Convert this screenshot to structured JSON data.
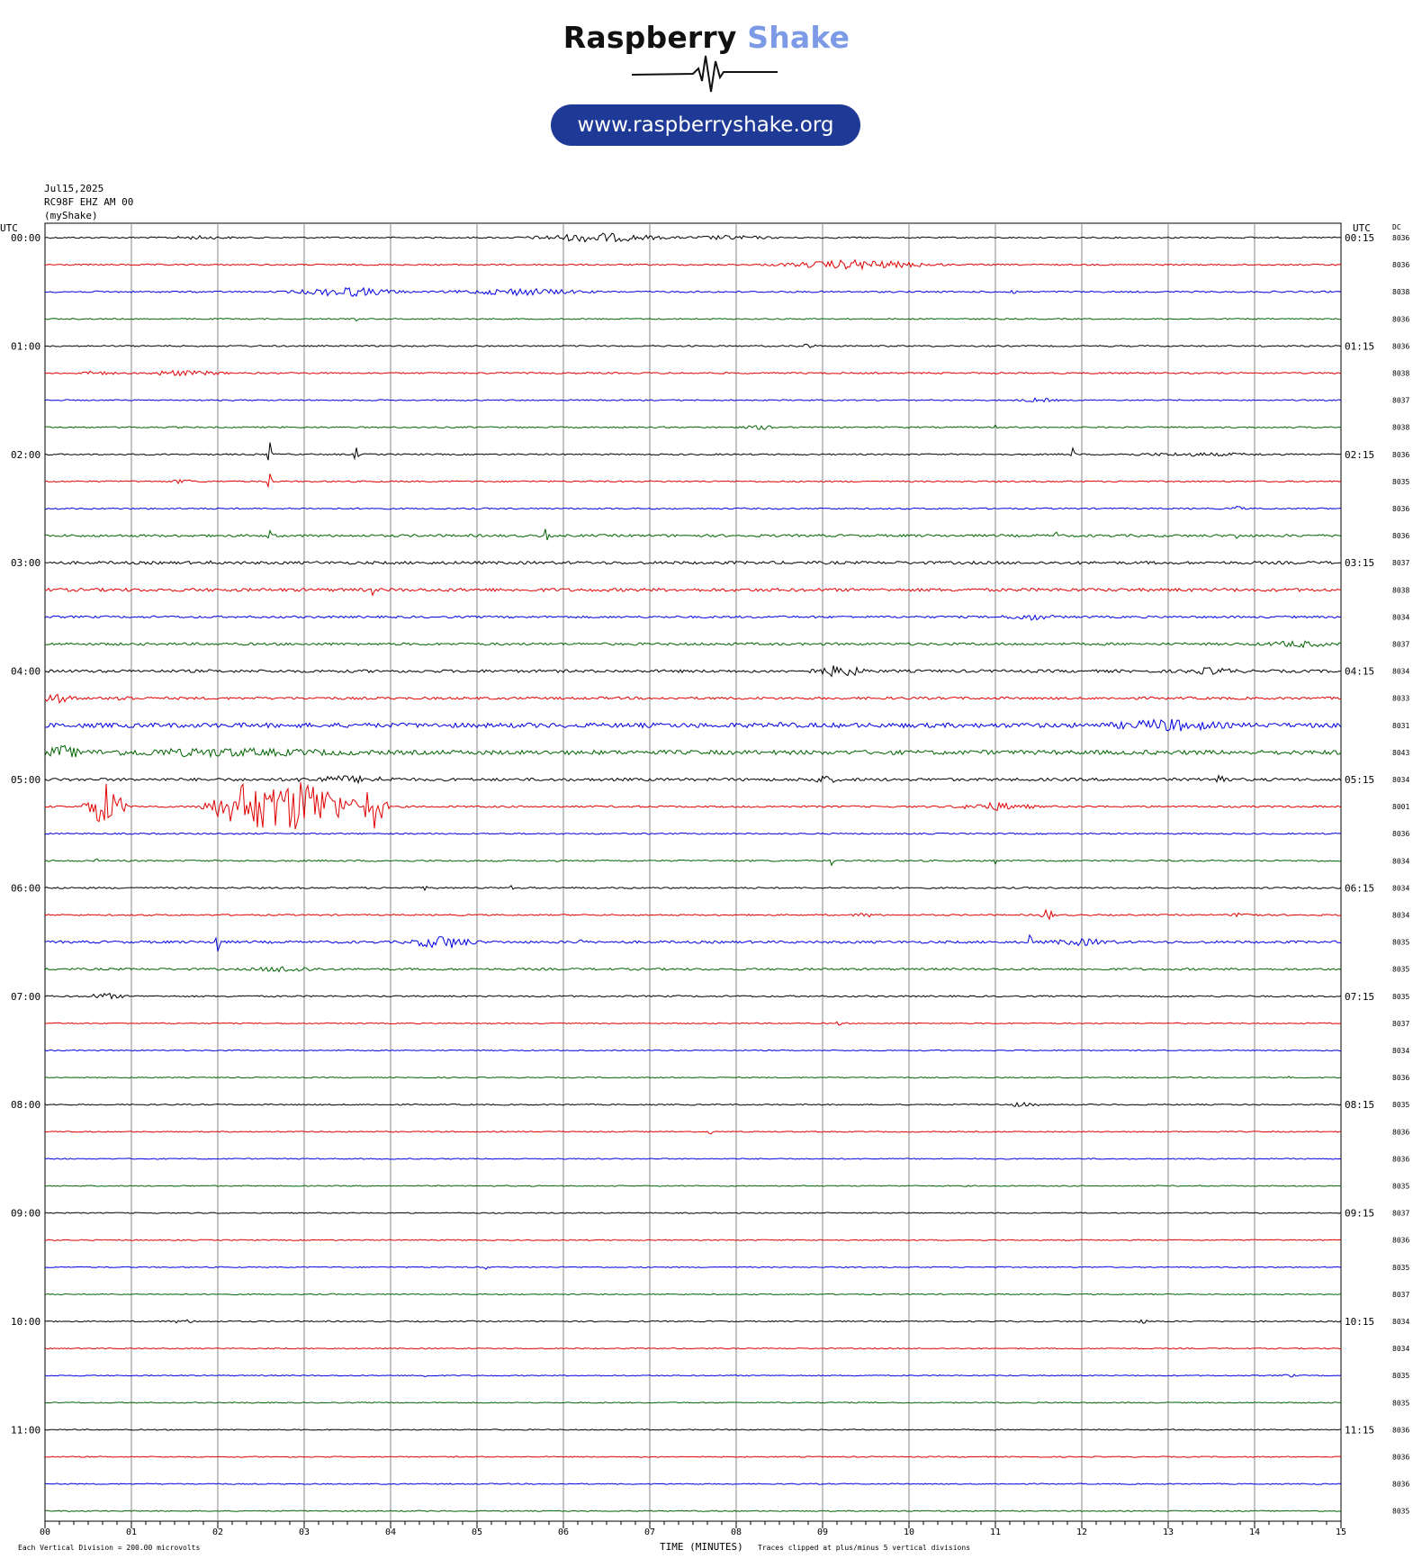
{
  "logo": {
    "brand_part1": "Raspberry",
    "brand_part2": "Shake",
    "url": "www.raspberryshake.org",
    "brand_color": "#7c9ae6",
    "pill_color": "#1e3a96"
  },
  "header": {
    "date": "Jul15,2025",
    "station": "RC98F EHZ AM 00",
    "source": "(myShake)"
  },
  "footer": {
    "scale_note": "Each Vertical Division = 200.00 microvolts",
    "clip_note": "Traces clipped at plus/minus 5 vertical divisions"
  },
  "chart_data": {
    "type": "line",
    "title": "",
    "xlabel": "TIME (MINUTES)",
    "left_axis_label": "UTC",
    "right_axis_label": "UTC",
    "dc_label": "DC",
    "xlim": [
      0,
      15
    ],
    "x_ticks": [
      "00",
      "01",
      "02",
      "03",
      "04",
      "05",
      "06",
      "07",
      "08",
      "09",
      "10",
      "11",
      "12",
      "13",
      "14",
      "15"
    ],
    "trace_colors": [
      "#000000",
      "#e00000",
      "#0000e0",
      "#006400"
    ],
    "left_hour_labels": [
      "00:00",
      "01:00",
      "02:00",
      "03:00",
      "04:00",
      "05:00",
      "06:00",
      "07:00",
      "08:00",
      "09:00",
      "10:00",
      "11:00"
    ],
    "right_hour_labels": [
      "00:15",
      "01:15",
      "02:15",
      "03:15",
      "04:15",
      "05:15",
      "06:15",
      "07:15",
      "08:15",
      "09:15",
      "10:15",
      "11:15"
    ],
    "dc_values": [
      "8036",
      "8036",
      "8038",
      "8036",
      "8036",
      "8038",
      "8037",
      "8038",
      "8036",
      "8035",
      "8036",
      "8036",
      "8037",
      "8038",
      "8034",
      "8037",
      "8034",
      "8033",
      "8031",
      "8043",
      "8034",
      "8001",
      "8036",
      "8034",
      "8034",
      "8034",
      "8035",
      "8035",
      "8035",
      "8037",
      "8034",
      "8036",
      "8035",
      "8036",
      "8036",
      "8035",
      "8037",
      "8036",
      "8035",
      "8037",
      "8034",
      "8034",
      "8035",
      "8035",
      "8036",
      "8036",
      "8036",
      "8035"
    ],
    "trace_activity": [
      {
        "row": 0,
        "noise": 0.8,
        "events": [
          [
            1.8,
            0.5,
            1.5
          ],
          [
            6.4,
            1.0,
            5
          ],
          [
            7.9,
            0.7,
            2
          ]
        ]
      },
      {
        "row": 1,
        "noise": 0.8,
        "events": [
          [
            9.4,
            1.2,
            5
          ]
        ]
      },
      {
        "row": 2,
        "noise": 0.9,
        "events": [
          [
            3.5,
            0.8,
            5
          ],
          [
            5.5,
            1.0,
            3.5
          ],
          [
            11.2,
            0.1,
            2
          ]
        ]
      },
      {
        "row": 3,
        "noise": 0.7,
        "events": [
          [
            3.6,
            0.05,
            3
          ]
        ]
      },
      {
        "row": 4,
        "noise": 0.8,
        "events": [
          [
            8.8,
            0.2,
            2
          ]
        ]
      },
      {
        "row": 5,
        "noise": 0.9,
        "events": [
          [
            0.6,
            0.3,
            2
          ],
          [
            1.5,
            0.4,
            3
          ],
          [
            1.9,
            0.3,
            1.5
          ]
        ]
      },
      {
        "row": 6,
        "noise": 0.7,
        "events": [
          [
            11.5,
            0.3,
            2
          ]
        ]
      },
      {
        "row": 7,
        "noise": 0.8,
        "events": [
          [
            8.3,
            0.3,
            2
          ],
          [
            11.0,
            0.05,
            4
          ]
        ]
      },
      {
        "row": 8,
        "noise": 0.8,
        "events": [
          [
            2.6,
            0.02,
            16
          ],
          [
            3.6,
            0.02,
            14
          ],
          [
            11.9,
            0.02,
            8
          ],
          [
            13.3,
            1.2,
            1.5
          ]
        ]
      },
      {
        "row": 9,
        "noise": 0.8,
        "events": [
          [
            1.6,
            0.2,
            2
          ],
          [
            2.6,
            0.02,
            14
          ]
        ]
      },
      {
        "row": 10,
        "noise": 0.8,
        "events": [
          [
            13.8,
            0.1,
            3
          ]
        ]
      },
      {
        "row": 11,
        "noise": 1.4,
        "events": [
          [
            5.8,
            0.02,
            10
          ],
          [
            11.7,
            0.05,
            5
          ],
          [
            13.8,
            0.05,
            4
          ],
          [
            2.6,
            0.02,
            11
          ]
        ]
      },
      {
        "row": 12,
        "noise": 1.6,
        "events": [
          [
            1.9,
            0.05,
            3
          ]
        ]
      },
      {
        "row": 13,
        "noise": 1.8,
        "events": [
          [
            3.8,
            0.05,
            8
          ]
        ]
      },
      {
        "row": 14,
        "noise": 1.2,
        "events": [
          [
            11.4,
            0.4,
            3
          ]
        ]
      },
      {
        "row": 15,
        "noise": 1.4,
        "events": [
          [
            14.5,
            0.5,
            3
          ]
        ]
      },
      {
        "row": 16,
        "noise": 1.6,
        "events": [
          [
            9.2,
            0.4,
            6
          ],
          [
            13.5,
            0.4,
            3
          ]
        ]
      },
      {
        "row": 17,
        "noise": 1.4,
        "events": [
          [
            0.1,
            0.3,
            5
          ],
          [
            0.9,
            0.2,
            3
          ]
        ]
      },
      {
        "row": 18,
        "noise": 2.6,
        "events": [
          [
            8.5,
            0.05,
            6
          ],
          [
            13.0,
            0.8,
            5
          ]
        ]
      },
      {
        "row": 19,
        "noise": 2.4,
        "events": [
          [
            2.0,
            2.0,
            3
          ],
          [
            0.2,
            0.3,
            6
          ]
        ]
      },
      {
        "row": 20,
        "noise": 1.6,
        "events": [
          [
            3.5,
            0.8,
            3
          ],
          [
            9.0,
            0.3,
            3
          ],
          [
            13.6,
            0.1,
            10
          ]
        ]
      },
      {
        "row": 21,
        "noise": 1.0,
        "events": [
          [
            0.7,
            0.3,
            26
          ],
          [
            2.3,
            0.6,
            24
          ],
          [
            3.0,
            0.8,
            32
          ],
          [
            3.8,
            0.2,
            28
          ],
          [
            11.0,
            0.6,
            4
          ]
        ]
      },
      {
        "row": 22,
        "noise": 0.8,
        "events": []
      },
      {
        "row": 23,
        "noise": 0.9,
        "events": [
          [
            0.6,
            0.05,
            4
          ],
          [
            9.1,
            0.05,
            5
          ],
          [
            11.0,
            0.05,
            3
          ]
        ]
      },
      {
        "row": 24,
        "noise": 0.9,
        "events": [
          [
            4.4,
            0.05,
            4
          ],
          [
            5.4,
            0.05,
            3
          ]
        ]
      },
      {
        "row": 25,
        "noise": 0.8,
        "events": [
          [
            11.6,
            0.1,
            8
          ],
          [
            13.9,
            0.2,
            4
          ],
          [
            9.5,
            0.2,
            2
          ]
        ]
      },
      {
        "row": 26,
        "noise": 1.4,
        "events": [
          [
            4.6,
            0.5,
            7
          ],
          [
            2.0,
            0.05,
            14
          ],
          [
            11.4,
            0.05,
            12
          ],
          [
            12.0,
            0.5,
            3
          ],
          [
            6.2,
            0.05,
            4
          ]
        ]
      },
      {
        "row": 27,
        "noise": 1.2,
        "events": [
          [
            2.8,
            0.5,
            3
          ]
        ]
      },
      {
        "row": 28,
        "noise": 0.9,
        "events": [
          [
            0.7,
            0.3,
            3
          ]
        ]
      },
      {
        "row": 29,
        "noise": 0.6,
        "events": [
          [
            9.2,
            0.1,
            2
          ]
        ]
      },
      {
        "row": 30,
        "noise": 0.6,
        "events": []
      },
      {
        "row": 31,
        "noise": 0.6,
        "events": [
          [
            14.4,
            0.05,
            2
          ]
        ]
      },
      {
        "row": 32,
        "noise": 0.7,
        "events": [
          [
            11.3,
            0.3,
            2
          ]
        ]
      },
      {
        "row": 33,
        "noise": 0.6,
        "events": [
          [
            7.7,
            0.05,
            3
          ]
        ]
      },
      {
        "row": 34,
        "noise": 0.6,
        "events": []
      },
      {
        "row": 35,
        "noise": 0.6,
        "events": []
      },
      {
        "row": 36,
        "noise": 0.6,
        "events": []
      },
      {
        "row": 37,
        "noise": 0.6,
        "events": []
      },
      {
        "row": 38,
        "noise": 0.6,
        "events": [
          [
            5.1,
            0.05,
            3
          ]
        ]
      },
      {
        "row": 39,
        "noise": 0.6,
        "events": []
      },
      {
        "row": 40,
        "noise": 0.7,
        "events": [
          [
            1.6,
            0.2,
            2
          ],
          [
            12.7,
            0.1,
            2
          ]
        ]
      },
      {
        "row": 41,
        "noise": 0.6,
        "events": []
      },
      {
        "row": 42,
        "noise": 0.6,
        "events": [
          [
            4.4,
            0.05,
            2
          ],
          [
            14.4,
            0.1,
            2
          ]
        ]
      },
      {
        "row": 43,
        "noise": 0.6,
        "events": [
          [
            2.4,
            0.05,
            2
          ]
        ]
      },
      {
        "row": 44,
        "noise": 0.6,
        "events": []
      },
      {
        "row": 45,
        "noise": 0.6,
        "events": []
      },
      {
        "row": 46,
        "noise": 0.6,
        "events": []
      },
      {
        "row": 47,
        "noise": 0.6,
        "events": []
      }
    ]
  }
}
